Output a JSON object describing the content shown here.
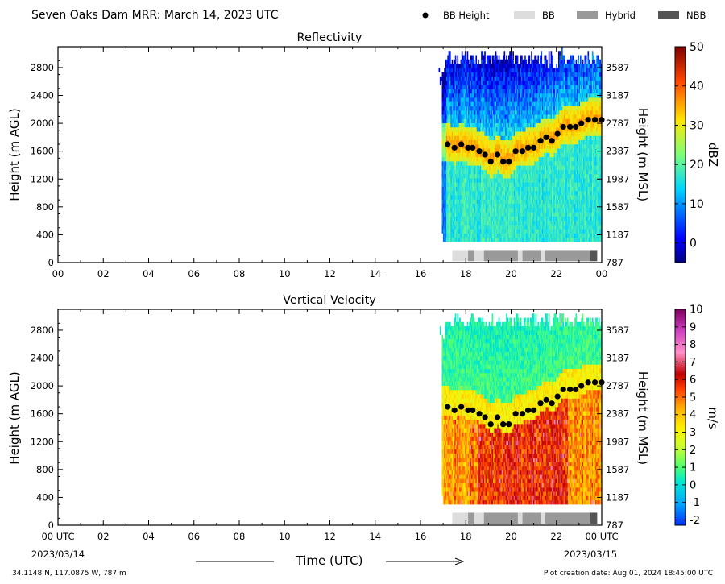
{
  "header": {
    "title": "Seven Oaks Dam MRR:  March 14, 2023 UTC",
    "legend": [
      {
        "label": "BB Height",
        "kind": "dot",
        "color": "#000000"
      },
      {
        "label": "BB",
        "kind": "box",
        "color": "#dddddd"
      },
      {
        "label": "Hybrid",
        "kind": "box",
        "color": "#999999"
      },
      {
        "label": "NBB",
        "kind": "box",
        "color": "#555555"
      }
    ]
  },
  "footer": {
    "location": "34.1148 N, 117.0875 W, 787 m",
    "creation": "Plot creation date: Aug 01, 2024 18:45:00 UTC",
    "time_label": "Time (UTC)"
  },
  "chart_data": [
    {
      "type": "heatmap",
      "title": "Reflectivity",
      "ylabel": "Height (m AGL)",
      "y2label": "Height (m MSL)",
      "ylim": [
        0,
        3100
      ],
      "xlim": [
        0,
        24
      ],
      "xticks": [
        "00",
        "02",
        "04",
        "06",
        "08",
        "10",
        "12",
        "14",
        "16",
        "18",
        "20",
        "22",
        "00"
      ],
      "yticks": [
        0,
        400,
        800,
        1200,
        1600,
        2000,
        2400,
        2800
      ],
      "y2ticks": [
        787,
        1187,
        1587,
        1987,
        2387,
        2787,
        3187,
        3587
      ],
      "colorbar": {
        "label": "dBZ",
        "min": -5,
        "max": 50,
        "ticks": [
          0,
          10,
          20,
          30,
          40,
          50
        ]
      },
      "data_extent_hours": [
        16.8,
        24
      ],
      "bb_height": {
        "x": [
          17.2,
          17.5,
          17.8,
          18.1,
          18.3,
          18.6,
          18.85,
          19.1,
          19.4,
          19.65,
          19.9,
          20.2,
          20.5,
          20.75,
          21.0,
          21.3,
          21.55,
          21.8,
          22.05,
          22.3,
          22.6,
          22.85,
          23.1,
          23.4,
          23.7,
          24.0
        ],
        "y": [
          1700,
          1650,
          1700,
          1650,
          1650,
          1600,
          1550,
          1450,
          1550,
          1450,
          1450,
          1600,
          1600,
          1650,
          1650,
          1750,
          1800,
          1750,
          1850,
          1950,
          1950,
          1950,
          2000,
          2050,
          2050,
          2050
        ]
      },
      "bb_classification": [
        {
          "start": 17.4,
          "end": 18.1,
          "type": "BB"
        },
        {
          "start": 18.1,
          "end": 18.35,
          "type": "Hybrid"
        },
        {
          "start": 18.35,
          "end": 18.8,
          "type": "BB"
        },
        {
          "start": 18.8,
          "end": 20.3,
          "type": "Hybrid"
        },
        {
          "start": 20.3,
          "end": 20.5,
          "type": "BB"
        },
        {
          "start": 20.5,
          "end": 21.3,
          "type": "Hybrid"
        },
        {
          "start": 21.3,
          "end": 21.5,
          "type": "BB"
        },
        {
          "start": 21.5,
          "end": 23.5,
          "type": "Hybrid"
        },
        {
          "start": 23.5,
          "end": 23.8,
          "type": "NBB"
        }
      ]
    },
    {
      "type": "heatmap",
      "title": "Vertical Velocity",
      "ylabel": "Height (m AGL)",
      "y2label": "Height (m MSL)",
      "ylim": [
        0,
        3100
      ],
      "xlim": [
        0,
        24
      ],
      "xticks": [
        "00 UTC",
        "02",
        "04",
        "06",
        "08",
        "10",
        "12",
        "14",
        "16",
        "18",
        "20",
        "22",
        "00 UTC"
      ],
      "xsublabels": [
        "2023/03/14",
        "2023/03/15"
      ],
      "yticks": [
        0,
        400,
        800,
        1200,
        1600,
        2000,
        2400,
        2800
      ],
      "y2ticks": [
        787,
        1187,
        1587,
        1987,
        2387,
        2787,
        3187,
        3587
      ],
      "colorbar": {
        "label": "m/s",
        "min": -2.3,
        "max": 10,
        "ticks": [
          -2,
          -1,
          0,
          1,
          2,
          3,
          4,
          5,
          6,
          7,
          8,
          9,
          10
        ]
      },
      "data_extent_hours": [
        16.8,
        24
      ],
      "bb_height": {
        "x": [
          17.2,
          17.5,
          17.8,
          18.1,
          18.3,
          18.6,
          18.85,
          19.1,
          19.4,
          19.65,
          19.9,
          20.2,
          20.5,
          20.75,
          21.0,
          21.3,
          21.55,
          21.8,
          22.05,
          22.3,
          22.6,
          22.85,
          23.1,
          23.4,
          23.7,
          24.0
        ],
        "y": [
          1700,
          1650,
          1700,
          1650,
          1650,
          1600,
          1550,
          1450,
          1550,
          1450,
          1450,
          1600,
          1600,
          1650,
          1650,
          1750,
          1800,
          1750,
          1850,
          1950,
          1950,
          1950,
          2000,
          2050,
          2050,
          2050
        ]
      },
      "bb_classification": [
        {
          "start": 17.4,
          "end": 18.1,
          "type": "BB"
        },
        {
          "start": 18.1,
          "end": 18.35,
          "type": "Hybrid"
        },
        {
          "start": 18.35,
          "end": 18.8,
          "type": "BB"
        },
        {
          "start": 18.8,
          "end": 20.3,
          "type": "Hybrid"
        },
        {
          "start": 20.3,
          "end": 20.5,
          "type": "BB"
        },
        {
          "start": 20.5,
          "end": 21.3,
          "type": "Hybrid"
        },
        {
          "start": 21.3,
          "end": 21.5,
          "type": "BB"
        },
        {
          "start": 21.5,
          "end": 23.5,
          "type": "Hybrid"
        },
        {
          "start": 23.5,
          "end": 23.8,
          "type": "NBB"
        }
      ]
    }
  ]
}
